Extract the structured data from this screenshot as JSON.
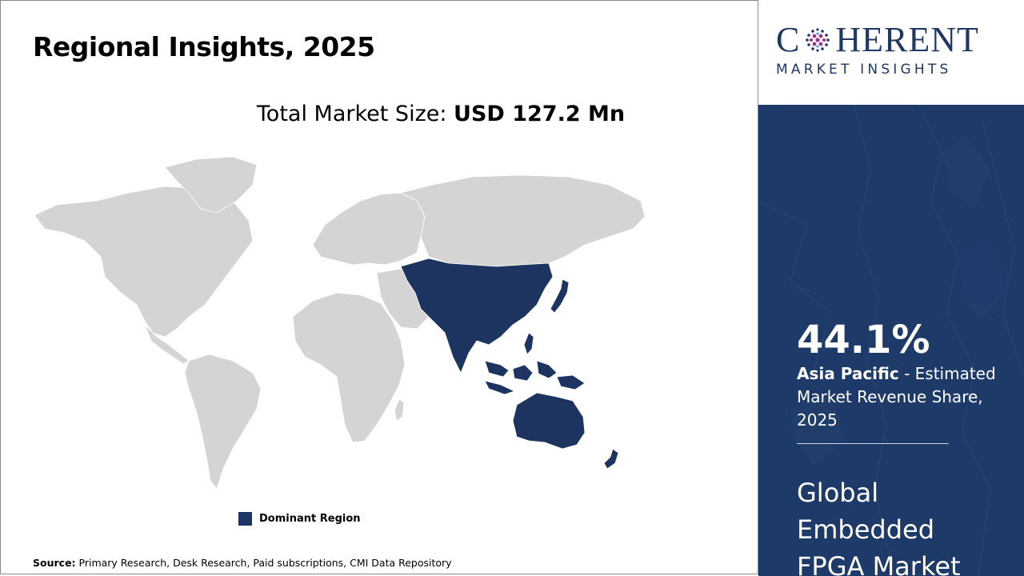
{
  "header": {
    "title": "Regional Insights, 2025"
  },
  "market_size": {
    "label": "Total Market Size: ",
    "value": "USD 127.2 Mn"
  },
  "map": {
    "dominant_region": "Asia Pacific",
    "dominant_color": "#1d3461",
    "base_color": "#d4d4d4"
  },
  "legend": {
    "label": "Dominant Region"
  },
  "source": {
    "label": "Source:",
    "text": " Primary Research, Desk Research, Paid subscriptions, CMI Data Repository"
  },
  "logo": {
    "word_pre": "C",
    "word_post": "HERENT",
    "sub": "MARKET INSIGHTS"
  },
  "panel": {
    "background": "#1e3a68",
    "stat": "44.1%",
    "region": "Asia Pacific",
    "stat_desc": " - Estimated Market Revenue Share, 2025",
    "market_name": "Global Embedded FPGA Market"
  }
}
